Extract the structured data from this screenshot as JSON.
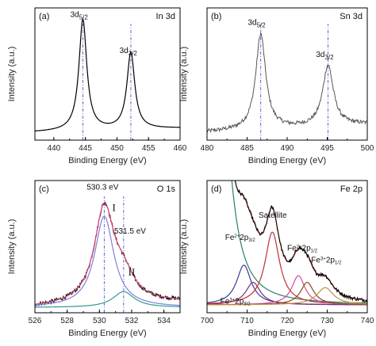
{
  "chart_data": [
    {
      "id": "a",
      "type": "line",
      "panel_label": "(a)",
      "corner_label": "In 3d",
      "xlabel": "Binding Energy (eV)",
      "ylabel": "Intensity (a.u.)",
      "xlim": [
        437,
        460
      ],
      "xticks": [
        440,
        445,
        450,
        455,
        460
      ],
      "peaks_dashed": [
        444.6,
        452.2
      ],
      "series": [
        {
          "color": "#000000",
          "peaks": [
            [
              444.6,
              0.84,
              0.75
            ],
            [
              452.2,
              0.58,
              0.75
            ]
          ],
          "baseline": [
            0.06,
            0.09
          ]
        }
      ],
      "annotations": [
        {
          "base": "3d",
          "sub": "5/2",
          "x": 444.0,
          "y": 0.93
        },
        {
          "base": "3d",
          "sub": "3/2",
          "x": 451.8,
          "y": 0.66
        }
      ]
    },
    {
      "id": "b",
      "type": "line",
      "panel_label": "(b)",
      "corner_label": "Sn 3d",
      "xlabel": "Binding Energy (eV)",
      "ylabel": "Intensity (a.u.)",
      "xlim": [
        480,
        500
      ],
      "xticks": [
        480,
        485,
        490,
        495,
        500
      ],
      "peaks_dashed": [
        486.7,
        495.1
      ],
      "series": [
        {
          "color": "#555555",
          "noisy": true,
          "peaks": [
            [
              486.7,
              0.72,
              0.75
            ],
            [
              495.1,
              0.46,
              0.8
            ]
          ],
          "baseline": [
            0.06,
            0.12
          ]
        }
      ],
      "annotations": [
        {
          "base": "3d",
          "sub": "5/2",
          "x": 486.2,
          "y": 0.87
        },
        {
          "base": "3d",
          "sub": "3/2",
          "x": 494.7,
          "y": 0.63
        }
      ]
    },
    {
      "id": "c",
      "type": "line",
      "panel_label": "(c)",
      "corner_label": "O 1s",
      "xlabel": "Binding Energy (eV)",
      "ylabel": "Intensity (a.u.)",
      "xlim": [
        526,
        535
      ],
      "xticks": [
        526,
        528,
        530,
        532,
        534
      ],
      "peaks_dashed": [
        530.3,
        531.5
      ],
      "series": [
        {
          "color": "#000000",
          "noisy": true,
          "peaks": [
            [
              530.3,
              0.72,
              0.75
            ],
            [
              531.5,
              0.17,
              0.8
            ]
          ],
          "baseline": [
            0.04,
            0.08
          ]
        },
        {
          "color": "#e04a7a",
          "peaks": [
            [
              530.3,
              0.72,
              0.75
            ],
            [
              531.5,
              0.17,
              0.8
            ]
          ],
          "baseline": [
            0.04,
            0.08
          ]
        },
        {
          "color": "#7f7fe0",
          "peaks": [
            [
              530.3,
              0.69,
              0.72
            ]
          ],
          "baseline": [
            0.04,
            0.04
          ]
        },
        {
          "color": "#2e9a8e",
          "peaks": [
            [
              531.5,
              0.12,
              0.8
            ]
          ],
          "baseline": [
            0.04,
            0.04
          ]
        }
      ],
      "annotations": [
        {
          "text": "530.3 eV",
          "x": 530.2,
          "y": 0.93
        },
        {
          "text": "531.5 eV",
          "x": 531.9,
          "y": 0.6
        },
        {
          "text": "I",
          "x": 530.9,
          "y": 0.77,
          "roman": true
        },
        {
          "text": "II",
          "x": 532.0,
          "y": 0.28,
          "roman": true
        }
      ]
    },
    {
      "id": "d",
      "type": "line",
      "panel_label": "(d)",
      "corner_label": "Fe 2p",
      "xlabel": "Binding Energy (eV)",
      "ylabel": "Intensity (a.u.)",
      "xlim": [
        700,
        740
      ],
      "xticks": [
        700,
        710,
        720,
        730,
        740
      ],
      "peaks_dashed": [],
      "series": [
        {
          "color": "#2a7f6f",
          "peaks": [
            [
              703,
              2.0,
              3.0
            ]
          ],
          "baseline": [
            0.06,
            0.06
          ]
        },
        {
          "color": "#3a3a9a",
          "peaks": [
            [
              709.2,
              0.3,
              2.2
            ]
          ],
          "baseline": [
            0.06,
            0.06
          ]
        },
        {
          "color": "#7a2a7a",
          "peaks": [
            [
              711.5,
              0.17,
              2.2
            ]
          ],
          "baseline": [
            0.06,
            0.06
          ]
        },
        {
          "color": "#c03030",
          "peaks": [
            [
              716.3,
              0.55,
              2.2
            ]
          ],
          "baseline": [
            0.06,
            0.06
          ]
        },
        {
          "color": "#d04aa0",
          "peaks": [
            [
              722.8,
              0.22,
              2.0
            ]
          ],
          "baseline": [
            0.06,
            0.06
          ]
        },
        {
          "color": "#8c4a1a",
          "peaks": [
            [
              725.0,
              0.17,
              2.0
            ]
          ],
          "baseline": [
            0.06,
            0.06
          ]
        },
        {
          "color": "#c09040",
          "peaks": [
            [
              729.5,
              0.13,
              2.5
            ]
          ],
          "baseline": [
            0.06,
            0.06
          ]
        },
        {
          "color": "#c23b2b",
          "peaks": [
            [
              703,
              2.0,
              3.0
            ],
            [
              709.2,
              0.3,
              2.2
            ],
            [
              711.5,
              0.17,
              2.2
            ],
            [
              716.3,
              0.55,
              2.2
            ],
            [
              722.8,
              0.22,
              2.0
            ],
            [
              725.0,
              0.17,
              2.0
            ],
            [
              729.5,
              0.13,
              2.5
            ]
          ],
          "baseline": [
            0.06,
            0.06
          ]
        },
        {
          "color": "#000000",
          "noisy": true,
          "peaks": [
            [
              703,
              2.0,
              3.0
            ],
            [
              709.2,
              0.3,
              2.2
            ],
            [
              711.5,
              0.17,
              2.2
            ],
            [
              716.3,
              0.55,
              2.2
            ],
            [
              722.8,
              0.22,
              2.0
            ],
            [
              725.0,
              0.17,
              2.0
            ],
            [
              729.5,
              0.13,
              2.5
            ]
          ],
          "baseline": [
            0.06,
            0.06
          ]
        }
      ],
      "annotations": [
        {
          "text": "Satellite",
          "x": 716.4,
          "y": 0.72
        },
        {
          "fe": "2+",
          "orb": "3/2",
          "x": 704.5,
          "y": 0.55
        },
        {
          "fe": "2+",
          "orb": "1/2",
          "x": 720.0,
          "y": 0.47
        },
        {
          "fe": "3+",
          "orb": "1/2",
          "x": 726.0,
          "y": 0.38
        },
        {
          "fe": "3+",
          "orb": "3/2",
          "x": 703.3,
          "y": 0.07
        }
      ]
    }
  ]
}
